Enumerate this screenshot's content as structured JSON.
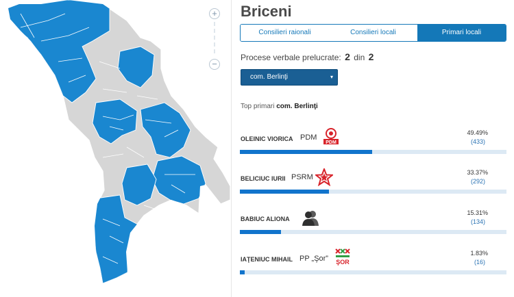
{
  "district": "Briceni",
  "tabs": [
    {
      "label": "Consilieri raionali",
      "active": false
    },
    {
      "label": "Consilieri locali",
      "active": false
    },
    {
      "label": "Primari locali",
      "active": true
    }
  ],
  "zoom": {
    "in_symbol": "+",
    "out_symbol": "−"
  },
  "processed": {
    "label": "Procese verbale prelucrate:",
    "done": "2",
    "of_word": "din",
    "total": "2"
  },
  "locality_select": {
    "value": "com. Berlinţi"
  },
  "top": {
    "label": "Top primari",
    "locality": "com. Berlinţi"
  },
  "candidates": [
    {
      "name": "OLEINIC VIORICA",
      "party": "PDM",
      "logo": "pdm-logo",
      "pct": "49.49%",
      "votes": "(433)",
      "fraction": 0.4949
    },
    {
      "name": "BELICIUC IURII",
      "party": "PSRM",
      "logo": "psrm-star-logo",
      "pct": "33.37%",
      "votes": "(292)",
      "fraction": 0.3337
    },
    {
      "name": "BABIUC ALIONA",
      "party": "",
      "logo": "independent-people-icon",
      "pct": "15.31%",
      "votes": "(134)",
      "fraction": 0.1531
    },
    {
      "name": "IAŢENIUC MIHAIL",
      "party": "PP „Şor”",
      "logo": "sor-logo",
      "pct": "1.83%",
      "votes": "(16)",
      "fraction": 0.0183
    }
  ],
  "colors": {
    "accent": "#1478b8",
    "map_highlight": "#1a87d0",
    "map_base": "#d6d6d6",
    "bar_fill": "#1174cc",
    "bar_track": "#dce9f4",
    "logo_red": "#d8232a",
    "logo_green": "#2f9e44"
  }
}
